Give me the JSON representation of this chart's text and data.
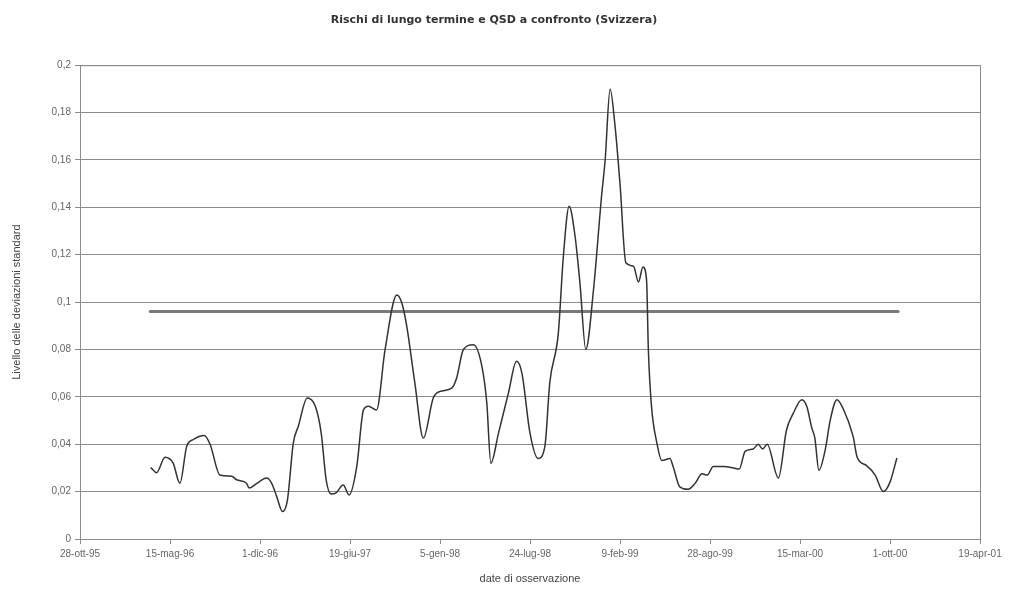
{
  "chart_data": {
    "type": "line",
    "title": "Rischi di lungo termine e QSD a confronto (Svizzera)",
    "xlabel": "date di osservazione",
    "ylabel": "Livello delle deviazioni standard",
    "xlim": [
      "1995-10-28",
      "2001-04-19"
    ],
    "xticks": [
      {
        "value": "1995-10-28",
        "label": "28-ott-95"
      },
      {
        "value": "1996-05-15",
        "label": "15-mag-96"
      },
      {
        "value": "1996-12-01",
        "label": "1-dic-96"
      },
      {
        "value": "1997-06-19",
        "label": "19-giu-97"
      },
      {
        "value": "1998-01-05",
        "label": "5-gen-98"
      },
      {
        "value": "1998-07-24",
        "label": "24-lug-98"
      },
      {
        "value": "1999-02-09",
        "label": "9-feb-99"
      },
      {
        "value": "1999-08-28",
        "label": "28-ago-99"
      },
      {
        "value": "2000-03-15",
        "label": "15-mar-00"
      },
      {
        "value": "2000-10-01",
        "label": "1-ott-00"
      },
      {
        "value": "2001-04-19",
        "label": "19-apr-01"
      }
    ],
    "ylim": [
      0,
      0.2
    ],
    "yticks": [
      0,
      {
        "value": 0.02,
        "label": "0,02"
      },
      {
        "value": 0.04,
        "label": "0,04"
      },
      {
        "value": 0.06,
        "label": "0,06"
      },
      {
        "value": 0.08,
        "label": "0,08"
      },
      {
        "value": 0.1,
        "label": "0,1"
      },
      {
        "value": 0.12,
        "label": "0,12"
      },
      {
        "value": 0.14,
        "label": "0,14"
      },
      {
        "value": 0.16,
        "label": "0,16"
      },
      {
        "value": 0.18,
        "label": "0,18"
      },
      {
        "value": 0.2,
        "label": "0,2"
      }
    ],
    "grid": "y",
    "marker": "none",
    "line_style": "solid",
    "series": [
      {
        "color": "#333333",
        "x": [
          "1996-04-03",
          "1996-04-15",
          "1996-05-04",
          "1996-05-22",
          "1996-06-06",
          "1996-06-21",
          "1996-07-06",
          "1996-07-30",
          "1996-08-12",
          "1996-09-03",
          "1996-09-29",
          "1996-10-10",
          "1996-11-01",
          "1996-11-07",
          "1996-11-24",
          "1996-12-16",
          "1996-12-27",
          "1997-01-07",
          "1997-01-20",
          "1997-01-31",
          "1997-02-13",
          "1997-02-24",
          "1997-03-16",
          "1997-04-03",
          "1997-04-16",
          "1997-04-27",
          "1997-05-08",
          "1997-05-19",
          "1997-06-04",
          "1997-06-17",
          "1997-07-04",
          "1997-07-19",
          "1997-07-30",
          "1997-08-17",
          "1997-09-05",
          "1997-10-01",
          "1997-10-12",
          "1997-10-23",
          "1997-11-10",
          "1997-11-29",
          "1997-12-21",
          "1998-01-05",
          "1998-01-31",
          "1998-02-11",
          "1998-02-26",
          "1998-03-20",
          "1998-04-08",
          "1998-04-19",
          "1998-04-28",
          "1998-05-15",
          "1998-06-06",
          "1998-06-24",
          "1998-07-06",
          "1998-07-24",
          "1998-08-11",
          "1998-08-26",
          "1998-09-06",
          "1998-09-25",
          "1998-10-06",
          "1998-10-19",
          "1998-11-01",
          "1998-11-12",
          "1998-11-25",
          "1998-12-12",
          "1998-12-30",
          "1999-01-07",
          "1999-01-18",
          "1999-01-29",
          "1999-02-09",
          "1999-02-22",
          "1999-03-11",
          "1999-03-22",
          "1999-04-01",
          "1999-04-09",
          "1999-04-13",
          "1999-04-20",
          "1999-05-02",
          "1999-05-13",
          "1999-05-31",
          "1999-06-07",
          "1999-06-22",
          "1999-07-11",
          "1999-07-26",
          "1999-08-10",
          "1999-08-22",
          "1999-09-04",
          "1999-09-27",
          "1999-10-19",
          "1999-11-01",
          "1999-11-14",
          "1999-12-02",
          "1999-12-13",
          "1999-12-23",
          "2000-01-02",
          "2000-01-27",
          "2000-02-14",
          "2000-02-29",
          "2000-03-19",
          "2000-03-30",
          "2000-04-10",
          "2000-04-17",
          "2000-04-26",
          "2000-05-10",
          "2000-05-21",
          "2000-06-05",
          "2000-06-19",
          "2000-07-11",
          "2000-07-20",
          "2000-08-10",
          "2000-08-29",
          "2000-09-16",
          "2000-10-01",
          "2000-10-16"
        ],
        "values": [
          0.03,
          0.028,
          0.0345,
          0.032,
          0.0235,
          0.039,
          0.042,
          0.0437,
          0.04,
          0.027,
          0.0265,
          0.025,
          0.0235,
          0.0215,
          0.0235,
          0.0257,
          0.0235,
          0.018,
          0.0116,
          0.0165,
          0.0405,
          0.0475,
          0.0595,
          0.056,
          0.0447,
          0.025,
          0.019,
          0.0195,
          0.0228,
          0.0186,
          0.0306,
          0.0545,
          0.056,
          0.0545,
          0.08,
          0.103,
          0.0997,
          0.09,
          0.066,
          0.0426,
          0.0595,
          0.0623,
          0.0637,
          0.068,
          0.08,
          0.082,
          0.073,
          0.0574,
          0.032,
          0.0447,
          0.0616,
          0.075,
          0.07,
          0.0447,
          0.034,
          0.039,
          0.066,
          0.087,
          0.119,
          0.1405,
          0.128,
          0.108,
          0.08,
          0.105,
          0.1447,
          0.16,
          0.19,
          0.1743,
          0.15,
          0.1166,
          0.1151,
          0.1085,
          0.1148,
          0.1095,
          0.08,
          0.056,
          0.0405,
          0.0331,
          0.034,
          0.0306,
          0.022,
          0.021,
          0.0235,
          0.0275,
          0.027,
          0.0306,
          0.0306,
          0.03,
          0.0295,
          0.037,
          0.038,
          0.04,
          0.038,
          0.04,
          0.0257,
          0.046,
          0.053,
          0.0588,
          0.056,
          0.047,
          0.0426,
          0.029,
          0.0376,
          0.05,
          0.0588,
          0.055,
          0.0433,
          0.0345,
          0.031,
          0.027,
          0.02,
          0.024,
          0.034
        ]
      },
      {
        "color": "#7a7a7a",
        "x": [
          "1996-04-01",
          "2000-10-19"
        ],
        "values": [
          0.096,
          0.096
        ]
      }
    ]
  }
}
